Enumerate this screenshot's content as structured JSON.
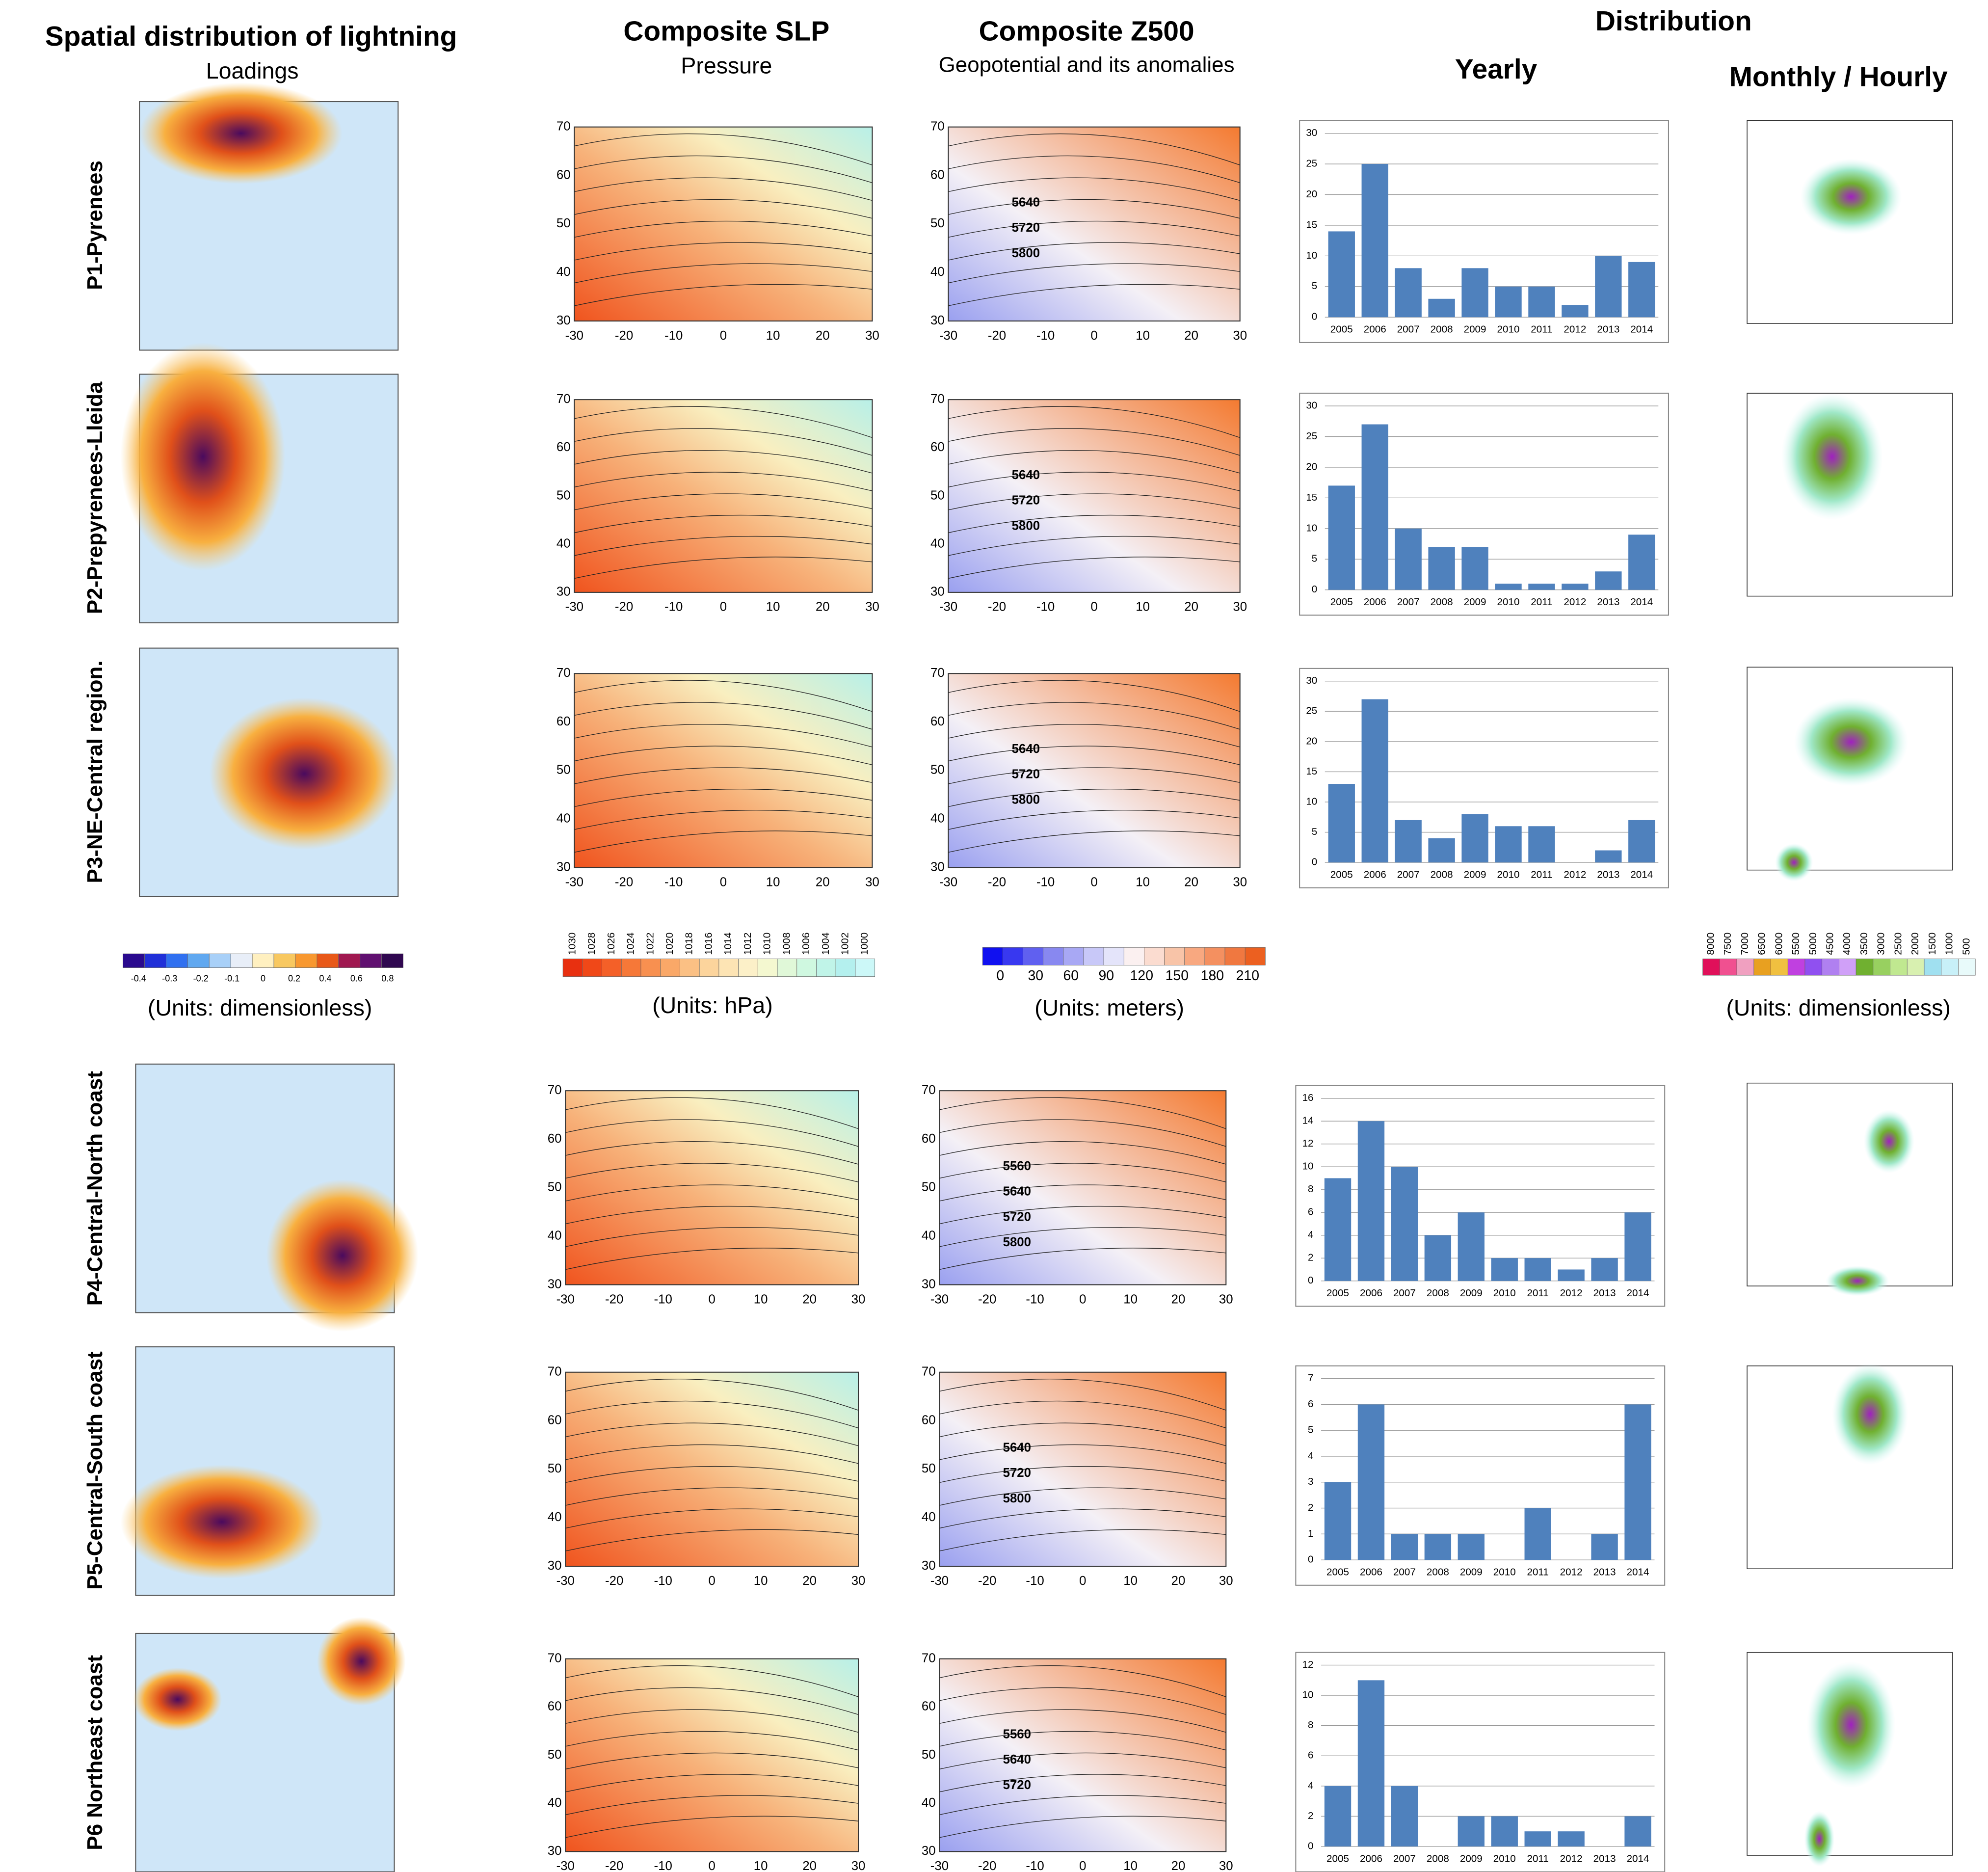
{
  "headers": {
    "lightning": {
      "title": "Spatial distribution of lightning",
      "subtitle": "Loadings"
    },
    "slp": {
      "title": "Composite SLP",
      "subtitle": "Pressure"
    },
    "z500": {
      "title": "Composite Z500",
      "subtitle": "Geopotential and its anomalies"
    },
    "distribution": {
      "title": "Distribution",
      "yearly": "Yearly",
      "monthly": "Monthly / Hourly"
    }
  },
  "map_axes": {
    "lat_ticks": [
      70,
      60,
      50,
      40,
      30
    ],
    "lon_ticks": [
      -30,
      -20,
      -10,
      0,
      10,
      20,
      30
    ]
  },
  "rows": [
    {
      "label": "P1-Pyrenees",
      "z500_contours": [
        5640,
        5720,
        5800
      ]
    },
    {
      "label": "P2-Prepyrenees-Lleida",
      "z500_contours": [
        5640,
        5720,
        5800
      ]
    },
    {
      "label": "P3-NE-Central region.",
      "z500_contours": [
        5640,
        5720,
        5800
      ]
    },
    {
      "label": "P4-Central-North coast",
      "z500_contours": [
        5560,
        5640,
        5720,
        5800
      ]
    },
    {
      "label": "P5-Central-South coast",
      "z500_contours": [
        5640,
        5720,
        5800
      ]
    },
    {
      "label": "P6 Northeast coast",
      "z500_contours": [
        5560,
        5640,
        5720
      ]
    }
  ],
  "colorbars": {
    "loadings": {
      "ticks": [
        -0.4,
        -0.3,
        -0.2,
        -0.1,
        0,
        0.2,
        0.4,
        0.6,
        0.8
      ],
      "units": "(Units: dimensionless)"
    },
    "slp": {
      "ticks": [
        1030,
        1028,
        1026,
        1024,
        1022,
        1020,
        1018,
        1016,
        1014,
        1012,
        1010,
        1008,
        1006,
        1004,
        1002,
        1000
      ],
      "units": "(Units: hPa)"
    },
    "z500": {
      "ticks": [
        0,
        30,
        60,
        90,
        120,
        150,
        180,
        210
      ],
      "units": "(Units: meters)"
    },
    "monthly": {
      "ticks": [
        8000,
        7500,
        7000,
        6500,
        6000,
        5500,
        5000,
        4500,
        4000,
        3500,
        3000,
        2500,
        2000,
        1500,
        1000,
        500
      ],
      "units": "(Units: dimensionless)"
    }
  },
  "chart_data": [
    {
      "type": "bar",
      "categories": [
        "2005",
        "2006",
        "2007",
        "2008",
        "2009",
        "2010",
        "2011",
        "2012",
        "2013",
        "2014"
      ],
      "values": [
        14,
        25,
        8,
        3,
        8,
        5,
        5,
        2,
        10,
        9
      ],
      "color": "#4f81bd",
      "ylim": [
        0,
        30
      ],
      "yticks": [
        0,
        5,
        10,
        15,
        20,
        25,
        30
      ],
      "grid": true
    },
    {
      "type": "bar",
      "categories": [
        "2005",
        "2006",
        "2007",
        "2008",
        "2009",
        "2010",
        "2011",
        "2012",
        "2013",
        "2014"
      ],
      "values": [
        17,
        27,
        10,
        7,
        7,
        1,
        1,
        1,
        3,
        9
      ],
      "color": "#4f81bd",
      "ylim": [
        0,
        30
      ],
      "yticks": [
        0,
        5,
        10,
        15,
        20,
        25,
        30
      ],
      "grid": true
    },
    {
      "type": "bar",
      "categories": [
        "2005",
        "2006",
        "2007",
        "2008",
        "2009",
        "2010",
        "2011",
        "2012",
        "2013",
        "2014"
      ],
      "values": [
        13,
        27,
        7,
        4,
        8,
        6,
        6,
        0,
        2,
        7
      ],
      "color": "#4f81bd",
      "ylim": [
        0,
        30
      ],
      "yticks": [
        0,
        5,
        10,
        15,
        20,
        25,
        30
      ],
      "grid": true
    },
    {
      "type": "bar",
      "categories": [
        "2005",
        "2006",
        "2007",
        "2008",
        "2009",
        "2010",
        "2011",
        "2012",
        "2013",
        "2014"
      ],
      "values": [
        9,
        14,
        10,
        4,
        6,
        2,
        2,
        1,
        2,
        6
      ],
      "color": "#4f81bd",
      "ylim": [
        0,
        16
      ],
      "yticks": [
        0,
        2,
        4,
        6,
        8,
        10,
        12,
        14,
        16
      ],
      "grid": true
    },
    {
      "type": "bar",
      "categories": [
        "2005",
        "2006",
        "2007",
        "2008",
        "2009",
        "2010",
        "2011",
        "2012",
        "2013",
        "2014"
      ],
      "values": [
        3,
        6,
        1,
        1,
        1,
        0,
        2,
        0,
        1,
        6
      ],
      "color": "#4f81bd",
      "ylim": [
        0,
        7
      ],
      "yticks": [
        0,
        1,
        2,
        3,
        4,
        5,
        6,
        7
      ],
      "grid": true
    },
    {
      "type": "bar",
      "categories": [
        "2005",
        "2006",
        "2007",
        "2008",
        "2009",
        "2010",
        "2011",
        "2012",
        "2013",
        "2014"
      ],
      "values": [
        4,
        11,
        4,
        0,
        2,
        2,
        1,
        1,
        0,
        2
      ],
      "color": "#4f81bd",
      "ylim": [
        0,
        12
      ],
      "yticks": [
        0,
        2,
        4,
        6,
        8,
        10,
        12
      ],
      "grid": true
    }
  ]
}
